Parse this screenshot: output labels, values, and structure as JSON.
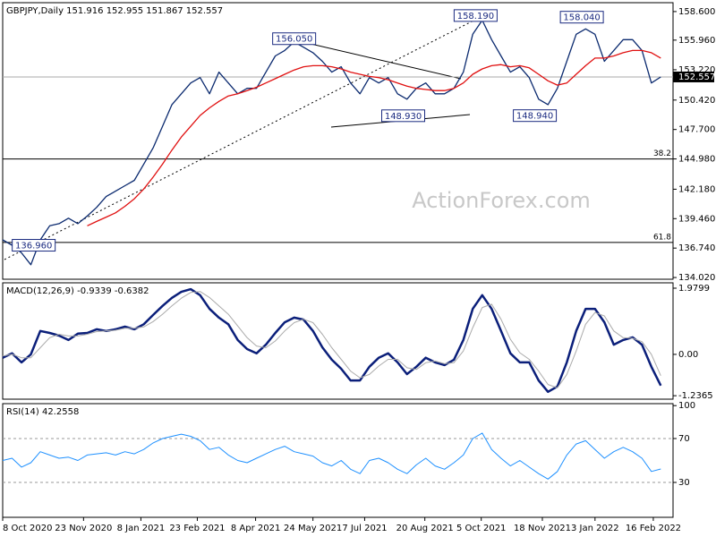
{
  "chart_data": [
    {
      "type": "line",
      "title": "GBPJPY,Daily  151.916 152.955 151.867 152.557",
      "watermark": "ActionForex.com",
      "xlim": [
        0,
        71.3
      ],
      "ylim": [
        133.86,
        159.42
      ],
      "yticks": [
        {
          "value": 158.6,
          "label": "158.600"
        },
        {
          "value": 155.96,
          "label": "155.960"
        },
        {
          "value": 153.22,
          "label": "153.220"
        },
        {
          "value": 150.42,
          "label": "150.420"
        },
        {
          "value": 147.7,
          "label": "147.700"
        },
        {
          "value": 144.98,
          "label": "144.980"
        },
        {
          "value": 142.18,
          "label": "142.180"
        },
        {
          "value": 139.46,
          "label": "139.460"
        },
        {
          "value": 136.74,
          "label": "136.740"
        },
        {
          "value": 134.02,
          "label": "134.020"
        }
      ],
      "last": 152.557,
      "levels": [
        {
          "value": 144.98,
          "label": "38.2"
        },
        {
          "value": 137.26,
          "label": "61.8"
        }
      ],
      "annotations": [
        {
          "x": 31,
          "value": 156.05,
          "label": "156.050"
        },
        {
          "x": 50.3,
          "value": 158.19,
          "label": "158.190"
        },
        {
          "x": 42.6,
          "value": 148.93,
          "label": "148.930"
        },
        {
          "x": 56.6,
          "value": 148.94,
          "label": "148.940"
        },
        {
          "x": 61.6,
          "value": 158.04,
          "label": "158.040"
        },
        {
          "x": 3.3,
          "value": 136.96,
          "label": "136.960"
        }
      ],
      "series": [
        {
          "color": "#0b2a6f",
          "values": [
            137.5,
            137.0,
            136.3,
            135.2,
            137.5,
            138.8,
            139.0,
            139.5,
            139.0,
            139.7,
            140.5,
            141.5,
            142.0,
            142.5,
            143.0,
            144.5,
            146.0,
            148.0,
            150.0,
            151.0,
            152.0,
            152.5,
            151.0,
            153.0,
            152.0,
            151.0,
            151.5,
            151.5,
            153.0,
            154.5,
            155.0,
            155.8,
            155.3,
            154.8,
            154.0,
            153.0,
            153.5,
            152.0,
            151.0,
            152.5,
            152.0,
            152.5,
            151.0,
            150.5,
            151.5,
            152.0,
            151.0,
            151.0,
            151.5,
            153.0,
            156.5,
            157.8,
            156.0,
            154.5,
            153.0,
            153.5,
            152.5,
            150.5,
            150.0,
            151.5,
            154.0,
            156.5,
            157.0,
            156.5,
            154.0,
            155.0,
            156.0,
            156.0,
            155.0,
            152.0,
            152.557
          ]
        },
        {
          "color": "#e01010",
          "values": [
            null,
            null,
            null,
            null,
            null,
            null,
            null,
            null,
            null,
            138.8,
            139.2,
            139.6,
            140.0,
            140.6,
            141.3,
            142.2,
            143.3,
            144.5,
            145.8,
            147.0,
            148.0,
            149.0,
            149.7,
            150.3,
            150.8,
            151.0,
            151.3,
            151.6,
            152.0,
            152.4,
            152.8,
            153.2,
            153.5,
            153.6,
            153.6,
            153.5,
            153.3,
            153.0,
            152.8,
            152.6,
            152.5,
            152.3,
            152.0,
            151.7,
            151.5,
            151.4,
            151.3,
            151.3,
            151.5,
            152.0,
            152.8,
            153.3,
            153.6,
            153.7,
            153.5,
            153.6,
            153.4,
            152.8,
            152.2,
            151.8,
            152.0,
            152.8,
            153.6,
            154.3,
            154.3,
            154.5,
            154.8,
            155.0,
            155.0,
            154.8,
            154.3
          ]
        }
      ]
    },
    {
      "type": "line",
      "title": "MACD(12,26,9) -0.9339 -0.6382",
      "xlim": [
        0,
        71.3
      ],
      "ylim": [
        -1.34,
        2.14
      ],
      "yticks": [
        1.9799,
        {
          "value": 0,
          "label": "0.00"
        },
        -1.2365
      ],
      "series": [
        {
          "color": "#0b1f7a",
          "width": 2.5,
          "values": [
            -0.1,
            0.03,
            -0.24,
            0.0,
            0.7,
            0.64,
            0.56,
            0.43,
            0.62,
            0.64,
            0.75,
            0.7,
            0.75,
            0.83,
            0.75,
            0.9,
            1.18,
            1.45,
            1.69,
            1.87,
            1.95,
            1.77,
            1.36,
            1.1,
            0.9,
            0.43,
            0.16,
            0.03,
            0.29,
            0.64,
            0.96,
            1.1,
            1.04,
            0.7,
            0.21,
            -0.16,
            -0.43,
            -0.78,
            -0.78,
            -0.37,
            -0.1,
            0.03,
            -0.24,
            -0.59,
            -0.37,
            -0.1,
            -0.24,
            -0.32,
            -0.16,
            0.43,
            1.36,
            1.77,
            1.36,
            0.7,
            0.03,
            -0.24,
            -0.24,
            -0.78,
            -1.12,
            -0.96,
            -0.24,
            0.7,
            1.36,
            1.36,
            0.96,
            0.29,
            0.43,
            0.51,
            0.29,
            -0.37,
            -0.9339
          ]
        },
        {
          "color": "#aaaaaa",
          "width": 1,
          "values": [
            -0.05,
            0.0,
            -0.1,
            -0.1,
            0.2,
            0.5,
            0.6,
            0.55,
            0.55,
            0.6,
            0.68,
            0.7,
            0.72,
            0.78,
            0.78,
            0.82,
            0.98,
            1.2,
            1.45,
            1.68,
            1.85,
            1.88,
            1.7,
            1.45,
            1.2,
            0.85,
            0.5,
            0.25,
            0.2,
            0.4,
            0.7,
            0.95,
            1.05,
            0.95,
            0.6,
            0.2,
            -0.15,
            -0.5,
            -0.7,
            -0.6,
            -0.35,
            -0.15,
            -0.15,
            -0.4,
            -0.45,
            -0.25,
            -0.2,
            -0.28,
            -0.25,
            0.1,
            0.8,
            1.4,
            1.5,
            1.05,
            0.45,
            0.05,
            -0.15,
            -0.5,
            -0.9,
            -1.0,
            -0.6,
            0.1,
            0.9,
            1.25,
            1.15,
            0.7,
            0.5,
            0.48,
            0.38,
            0.0,
            -0.6382
          ]
        }
      ]
    },
    {
      "type": "line",
      "title": "RSI(14) 42.2558",
      "xlim": [
        0,
        71.3
      ],
      "ylim": [
        -1.8,
        101.8
      ],
      "yticks": [
        100,
        70,
        30
      ],
      "levels": [
        30,
        70
      ],
      "xticks": [
        {
          "value": 0,
          "label": "8 Oct 2020"
        },
        {
          "value": 8.6,
          "label": "23 Nov 2020"
        },
        {
          "value": 14.7,
          "label": "8 Jan 2021"
        },
        {
          "value": 20.7,
          "label": "23 Feb 2021"
        },
        {
          "value": 26.9,
          "label": "8 Apr 2021"
        },
        {
          "value": 33,
          "label": "24 May 2021"
        },
        {
          "value": 38.5,
          "label": "7 Jul 2021"
        },
        {
          "value": 44.9,
          "label": "20 Aug 2021"
        },
        {
          "value": 50.9,
          "label": "5 Oct 2021"
        },
        {
          "value": 57.4,
          "label": "18 Nov 2021"
        },
        {
          "value": 63,
          "label": "3 Jan 2022"
        },
        {
          "value": 69.2,
          "label": "16 Feb 2022"
        }
      ],
      "series": [
        {
          "color": "#1e90ff",
          "width": 1,
          "values": [
            50,
            52,
            44,
            48,
            58,
            55,
            52,
            53,
            50,
            55,
            56,
            57,
            55,
            58,
            56,
            60,
            66,
            70,
            72,
            74,
            72,
            68,
            60,
            62,
            55,
            50,
            48,
            52,
            56,
            60,
            63,
            58,
            56,
            54,
            48,
            45,
            50,
            42,
            38,
            50,
            52,
            48,
            42,
            38,
            46,
            52,
            45,
            42,
            48,
            55,
            70,
            75,
            60,
            52,
            45,
            50,
            44,
            38,
            33,
            40,
            55,
            65,
            68,
            60,
            52,
            58,
            62,
            58,
            52,
            40,
            42.2558
          ]
        }
      ]
    }
  ]
}
